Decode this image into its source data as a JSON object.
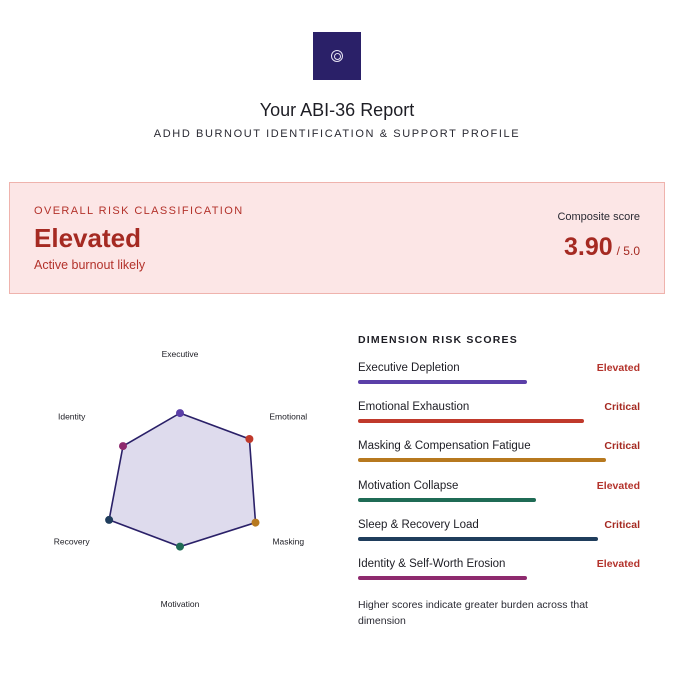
{
  "logo": {
    "icon": "concentric-rings-icon",
    "color": "#2a2068"
  },
  "header": {
    "title": "Your ABI-36 Report",
    "subtitle": "ADHD BURNOUT IDENTIFICATION & SUPPORT PROFILE"
  },
  "risk": {
    "label": "OVERALL RISK CLASSIFICATION",
    "level": "Elevated",
    "note": "Active burnout likely",
    "composite_label": "Composite score",
    "composite_value": "3.90",
    "composite_max": "/ 5.0"
  },
  "radar": {
    "max": 5,
    "axes": [
      {
        "label": "Executive",
        "score": 3.7,
        "color": "#5b3fa8"
      },
      {
        "label": "Emotional",
        "score": 4.5,
        "color": "#c0392b"
      },
      {
        "label": "Masking",
        "score": 4.9,
        "color": "#b7791f"
      },
      {
        "label": "Motivation",
        "score": 3.8,
        "color": "#1f6b55"
      },
      {
        "label": "Recovery",
        "score": 4.6,
        "color": "#1f3d5c"
      },
      {
        "label": "Identity",
        "score": 3.7,
        "color": "#8e2a6e"
      }
    ]
  },
  "dimensions": {
    "heading": "DIMENSION RISK SCORES",
    "items": [
      {
        "name": "Executive Depletion",
        "level": "Elevated",
        "fraction": 0.6,
        "bar_color": "#5b3fa8",
        "level_color": "#b3322b"
      },
      {
        "name": "Emotional Exhaustion",
        "level": "Critical",
        "fraction": 0.8,
        "bar_color": "#c0392b",
        "level_color": "#a52a22"
      },
      {
        "name": "Masking & Compensation Fatigue",
        "level": "Critical",
        "fraction": 0.88,
        "bar_color": "#b7791f",
        "level_color": "#a52a22"
      },
      {
        "name": "Motivation Collapse",
        "level": "Elevated",
        "fraction": 0.63,
        "bar_color": "#1f6b55",
        "level_color": "#b3322b"
      },
      {
        "name": "Sleep & Recovery Load",
        "level": "Critical",
        "fraction": 0.85,
        "bar_color": "#1f3d5c",
        "level_color": "#a52a22"
      },
      {
        "name": "Identity & Self-Worth Erosion",
        "level": "Elevated",
        "fraction": 0.6,
        "bar_color": "#8e2a6e",
        "level_color": "#b3322b"
      }
    ],
    "note": "Higher scores indicate greater burden across that dimension"
  }
}
